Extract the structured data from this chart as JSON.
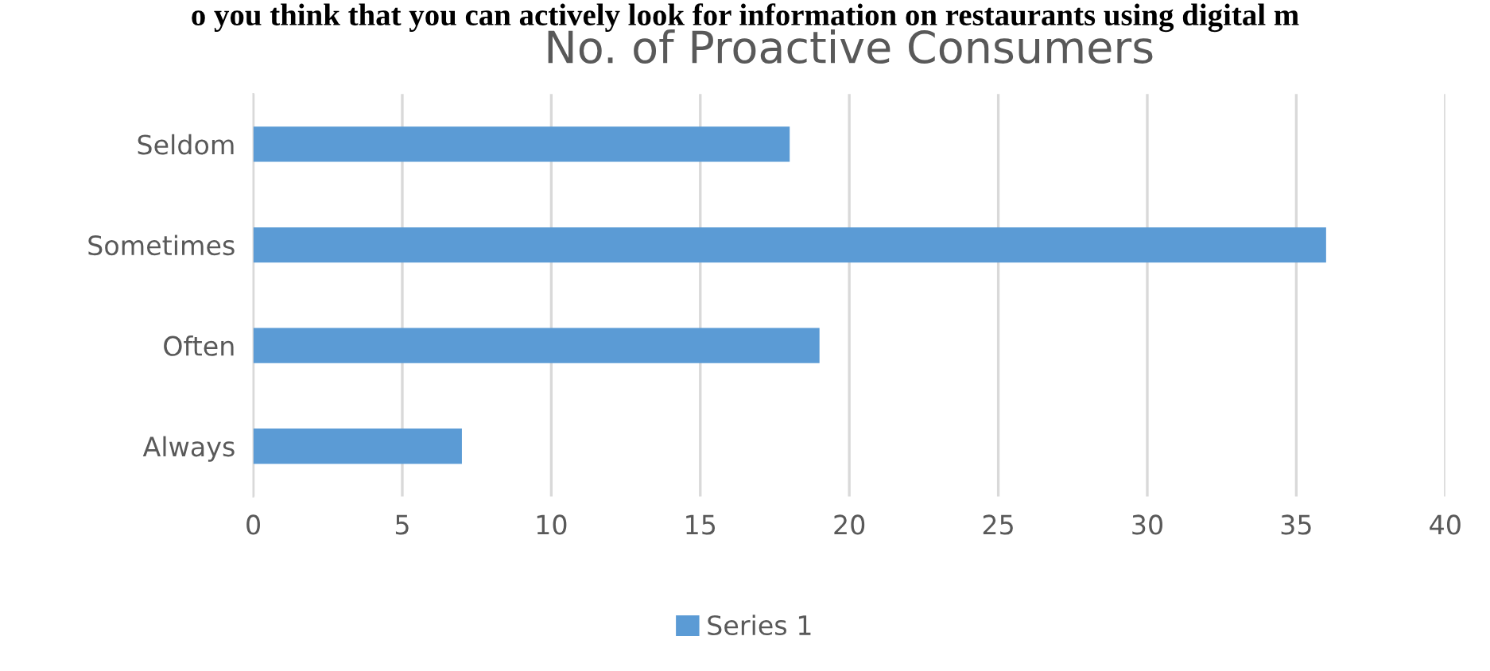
{
  "chart_data": {
    "type": "bar",
    "orientation": "horizontal",
    "title": "No. of Proactive Consumers",
    "annotations": [
      "o you think that you can actively look for information on restaurants using digital m"
    ],
    "categories": [
      "Seldom",
      "Sometimes",
      "Often",
      "Always"
    ],
    "series": [
      {
        "name": "Series 1",
        "color": "#5b9bd5",
        "values": [
          18,
          36,
          19,
          7
        ]
      }
    ],
    "xlim": [
      0,
      40
    ],
    "xticks": [
      0,
      5,
      10,
      15,
      20,
      25,
      30,
      35,
      40
    ],
    "grid": "x",
    "legend": "bottom"
  }
}
